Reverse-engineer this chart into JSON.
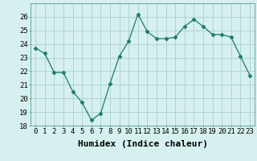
{
  "x": [
    0,
    1,
    2,
    3,
    4,
    5,
    6,
    7,
    8,
    9,
    10,
    11,
    12,
    13,
    14,
    15,
    16,
    17,
    18,
    19,
    20,
    21,
    22,
    23
  ],
  "y": [
    23.7,
    23.3,
    21.9,
    21.9,
    20.5,
    19.7,
    18.4,
    18.9,
    21.1,
    23.1,
    24.2,
    26.2,
    24.9,
    24.4,
    24.4,
    24.5,
    25.3,
    25.8,
    25.3,
    24.7,
    24.7,
    24.5,
    23.1,
    21.7
  ],
  "xlabel": "Humidex (Indice chaleur)",
  "ylim": [
    18,
    27
  ],
  "yticks": [
    18,
    19,
    20,
    21,
    22,
    23,
    24,
    25,
    26
  ],
  "xticks": [
    0,
    1,
    2,
    3,
    4,
    5,
    6,
    7,
    8,
    9,
    10,
    11,
    12,
    13,
    14,
    15,
    16,
    17,
    18,
    19,
    20,
    21,
    22,
    23
  ],
  "line_color": "#1a7a6e",
  "marker": "D",
  "marker_size": 2.5,
  "bg_color": "#d6f0ef",
  "grid_color": "#aed4d2",
  "xlabel_fontsize": 8,
  "tick_fontsize": 6.5
}
